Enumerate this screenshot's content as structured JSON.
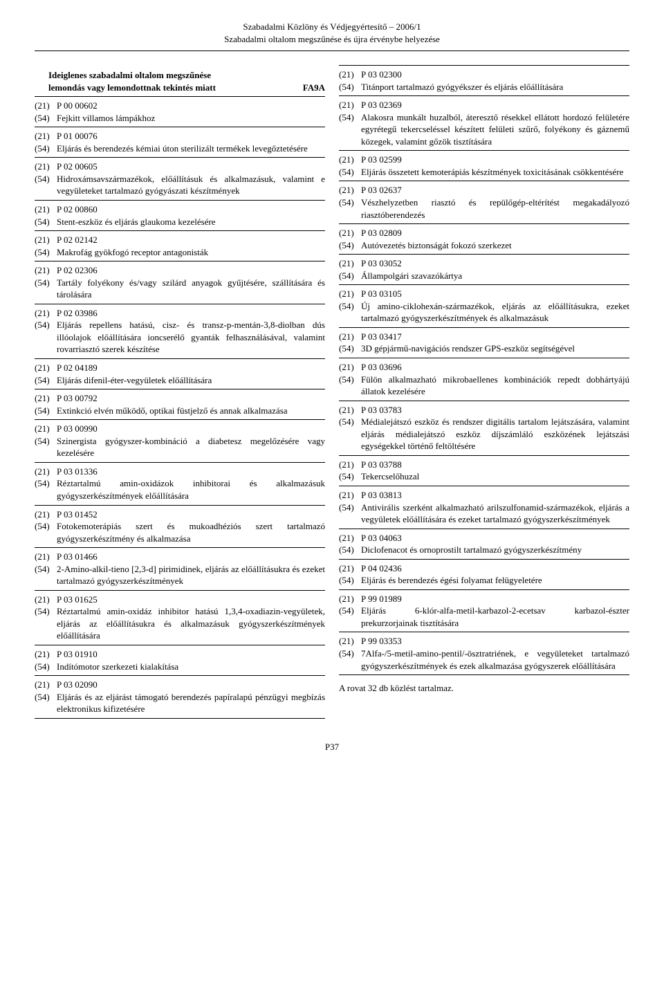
{
  "header": {
    "line1": "Szabadalmi Közlöny és Védjegyértesítő – 2006/1",
    "line2": "Szabadalmi oltalom megszűnése és újra érvénybe helyezése"
  },
  "section": {
    "title1": "Ideiglenes szabadalmi oltalom megszűnése",
    "title2": "lemondás vagy lemondottnak tekintés miatt",
    "code": "FA9A"
  },
  "left": [
    {
      "num": "P 00 00602",
      "title": "Fejkitt villamos lámpákhoz"
    },
    {
      "num": "P 01 00076",
      "title": "Eljárás és berendezés kémiai úton sterilizált termékek levegőztetésére"
    },
    {
      "num": "P 02 00605",
      "title": "Hidroxámsavszármazékok, előállításuk és alkalmazásuk, valamint e vegyületeket tartalmazó gyógyászati készítmények"
    },
    {
      "num": "P 02 00860",
      "title": "Stent-eszköz és eljárás glaukoma kezelésére"
    },
    {
      "num": "P 02 02142",
      "title": "Makrofág gyökfogó receptor antagonisták"
    },
    {
      "num": "P 02 02306",
      "title": "Tartály folyékony és/vagy szilárd anyagok gyűjtésére, szállítására és tárolására"
    },
    {
      "num": "P 02 03986",
      "title": "Eljárás repellens hatású, cisz- és transz-p-mentán-3,8-diolban dús illóolajok előállítására ioncserélő gyanták felhasználásával, valamint rovarriasztó szerek készítése"
    },
    {
      "num": "P 02 04189",
      "title": "Eljárás difenil-éter-vegyületek előállítására"
    },
    {
      "num": "P 03 00792",
      "title": "Extinkció elvén működő, optikai füstjelző és annak alkalmazása"
    },
    {
      "num": "P 03 00990",
      "title": "Szinergista gyógyszer-kombináció a diabetesz megelőzésére vagy kezelésére"
    },
    {
      "num": "P 03 01336",
      "title": "Réztartalmú amin-oxidázok inhibitorai és alkalmazásuk gyógyszerkészítmények előállítására"
    },
    {
      "num": "P 03 01452",
      "title": "Fotokemoterápiás szert és mukoadhéziós szert tartalmazó gyógyszerkészítmény és alkalmazása"
    },
    {
      "num": "P 03 01466",
      "title": "2-Amino-alkil-tieno [2,3-d] pirimidinek, eljárás az előállításukra és ezeket tartalmazó gyógyszerkészítmények"
    },
    {
      "num": "P 03 01625",
      "title": "Réztartalmú amin-oxidáz inhibitor hatású 1,3,4-oxadiazin-vegyületek, eljárás az előállításukra és alkalmazásuk gyógyszerkészítmények előállítására"
    },
    {
      "num": "P 03 01910",
      "title": "Indítómotor szerkezeti kialakítása"
    },
    {
      "num": "P 03 02090",
      "title": "Eljárás és az eljárást támogató berendezés papíralapú pénzügyi megbízás elektronikus kifizetésére"
    }
  ],
  "right": [
    {
      "num": "P 03 02300",
      "title": "Titánport tartalmazó gyógyékszer és eljárás előállítására"
    },
    {
      "num": "P 03 02369",
      "title": "Alakosra munkált huzalból, áteresztő résekkel ellátott hordozó felületére egyrétegű tekercseléssel készített felületi szűrő, folyékony és gáznemű közegek, valamint gőzök tisztítására"
    },
    {
      "num": "P 03 02599",
      "title": "Eljárás összetett kemoterápiás készítmények toxicitásának csökkentésére"
    },
    {
      "num": "P 03 02637",
      "title": "Vészhelyzetben riasztó és repülőgép-eltérítést megakadályozó riasztóberendezés"
    },
    {
      "num": "P 03 02809",
      "title": "Autóvezetés biztonságát fokozó szerkezet"
    },
    {
      "num": "P 03 03052",
      "title": "Állampolgári szavazókártya"
    },
    {
      "num": "P 03 03105",
      "title": "Új amino-ciklohexán-származékok, eljárás az előállításukra, ezeket tartalmazó gyógyszerkészítmények és alkalmazásuk"
    },
    {
      "num": "P 03 03417",
      "title": "3D gépjármű-navigációs rendszer GPS-eszköz segítségével"
    },
    {
      "num": "P 03 03696",
      "title": "Fülön alkalmazható mikrobaellenes kombinációk repedt dobhártyájú állatok kezelésére"
    },
    {
      "num": "P 03 03783",
      "title": "Médialejátszó eszköz és rendszer digitális tartalom lejátszására, valamint eljárás médialejátszó eszköz díjszámláló eszközének lejátszási egységekkel történő feltöltésére"
    },
    {
      "num": "P 03 03788",
      "title": "Tekercselőhuzal"
    },
    {
      "num": "P 03 03813",
      "title": "Antivirális szerként alkalmazható arilszulfonamid-származékok, eljárás a vegyületek előállítására és ezeket tartalmazó gyógyszerkészítmények"
    },
    {
      "num": "P 03 04063",
      "title": "Diclofenacot és ornoprostilt tartalmazó gyógyszerkészítmény"
    },
    {
      "num": "P 04 02436",
      "title": "Eljárás és berendezés égési folyamat felügyeletére"
    },
    {
      "num": "P 99 01989",
      "title": "Eljárás 6-klór-alfa-metil-karbazol-2-ecetsav karbazol-észter prekurzorjainak tisztítására"
    },
    {
      "num": "P 99 03353",
      "title": "7Alfa-/5-metil-amino-pentil/-ösztratriének, e vegyületeket tartalmazó gyógyszerkészítmények és ezek alkalmazása gyógyszerek előállítására"
    }
  ],
  "footer": {
    "note": "A rovat 32 db közlést tartalmaz.",
    "page": "P37"
  },
  "labels": {
    "l21": "(21)",
    "l54": "(54)"
  }
}
